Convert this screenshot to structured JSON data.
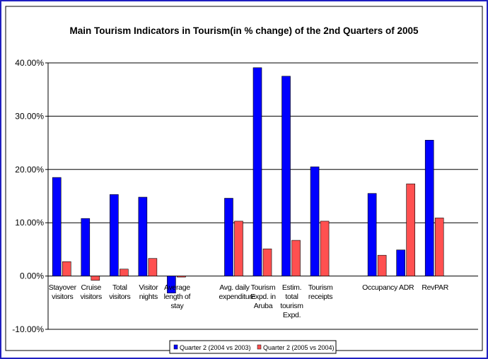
{
  "chart_data": {
    "type": "bar",
    "title": "Main Tourism Indicators in Tourism(in % change) of the 2nd Quarters of 2005",
    "categories": [
      "Stayover visitors",
      "Cruise visitors",
      "Total visitors",
      "Visitor nights",
      "Average length of stay",
      null,
      "Avg. daily expenditure",
      "Tourism Expd. in Aruba",
      "Estim. total tourism Expd.",
      "Tourism receipts",
      null,
      "Occupancy",
      "ADR",
      "RevPAR",
      null
    ],
    "series": [
      {
        "name": "Quarter 2 (2004 vs 2003)",
        "color": "#0000ff",
        "values": [
          18.5,
          10.8,
          15.3,
          14.8,
          -3.2,
          null,
          14.6,
          39.1,
          37.5,
          20.5,
          null,
          15.5,
          4.9,
          25.5,
          null
        ]
      },
      {
        "name": "Quarter 2 (2005 vs 2004)",
        "color": "#ff5050",
        "values": [
          2.7,
          -0.8,
          1.3,
          3.3,
          -0.2,
          null,
          10.3,
          5.1,
          6.7,
          10.3,
          null,
          3.9,
          17.3,
          10.9,
          null
        ]
      }
    ],
    "ylim": [
      -10,
      40
    ],
    "yticks": [
      {
        "value": -10,
        "label": "-10.00%"
      },
      {
        "value": 0,
        "label": "0.00%"
      },
      {
        "value": 10,
        "label": "10.00%"
      },
      {
        "value": 20,
        "label": "20.00%"
      },
      {
        "value": 30,
        "label": "30.00%"
      },
      {
        "value": 40,
        "label": "40.00%"
      }
    ],
    "grid": true
  }
}
